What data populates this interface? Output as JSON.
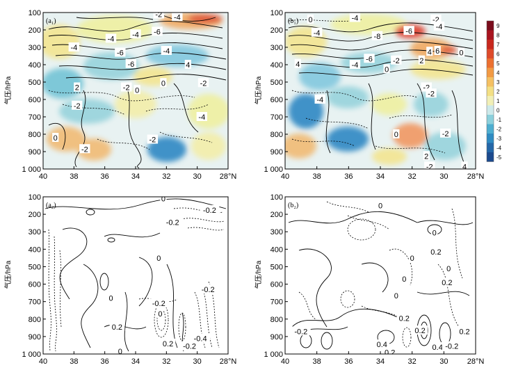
{
  "chart_data": [
    {
      "type": "heatmap",
      "panel_label": "(a₁)",
      "ylabel": "气压/hPa",
      "x_ticks": [
        "40",
        "38",
        "36",
        "34",
        "32",
        "30",
        "28°N"
      ],
      "y_ticks": [
        "100",
        "200",
        "300",
        "400",
        "500",
        "600",
        "700",
        "800",
        "900",
        "1 000"
      ],
      "xlim": [
        40,
        28
      ],
      "ylim": [
        100,
        1000
      ],
      "contour_labels": [
        {
          "text": "-2",
          "lat": 32.5,
          "p": 110
        },
        {
          "text": "-4",
          "lat": 31.3,
          "p": 125
        },
        {
          "text": "-6",
          "lat": 32.6,
          "p": 210
        },
        {
          "text": "-4",
          "lat": 35.6,
          "p": 250
        },
        {
          "text": "-4",
          "lat": 34.0,
          "p": 225
        },
        {
          "text": "-4",
          "lat": 38.0,
          "p": 300
        },
        {
          "text": "-6",
          "lat": 35.0,
          "p": 330
        },
        {
          "text": "-4",
          "lat": 32.0,
          "p": 320
        },
        {
          "text": "4",
          "lat": 30.6,
          "p": 400
        },
        {
          "text": "-6",
          "lat": 34.3,
          "p": 395
        },
        {
          "text": "2",
          "lat": 37.8,
          "p": 530
        },
        {
          "text": "-2",
          "lat": 34.6,
          "p": 530
        },
        {
          "text": "0",
          "lat": 33.9,
          "p": 545
        },
        {
          "text": "0",
          "lat": 32.2,
          "p": 505
        },
        {
          "text": "-2",
          "lat": 29.6,
          "p": 505
        },
        {
          "text": "-2",
          "lat": 37.8,
          "p": 635
        },
        {
          "text": "-4",
          "lat": 29.7,
          "p": 700
        },
        {
          "text": "0",
          "lat": 39.2,
          "p": 820
        },
        {
          "text": "-2",
          "lat": 37.3,
          "p": 885
        },
        {
          "text": "-2",
          "lat": 32.9,
          "p": 830
        }
      ]
    },
    {
      "type": "heatmap",
      "panel_label": "(b₁)",
      "ylabel": "气压/hPa",
      "x_ticks": [
        "40",
        "38",
        "36",
        "34",
        "32",
        "30",
        "28°N"
      ],
      "y_ticks": [
        "100",
        "200",
        "300",
        "400",
        "500",
        "600",
        "700",
        "800",
        "900",
        "1 000"
      ],
      "xlim": [
        40,
        28
      ],
      "ylim": [
        100,
        1000
      ],
      "colorbar": [
        "9",
        "8",
        "7",
        "6",
        "5",
        "4",
        "3",
        "2",
        "1",
        "0",
        "-1",
        "-2",
        "-3",
        "-4",
        "-5"
      ],
      "contour_labels": [
        {
          "text": "0",
          "lat": 38.4,
          "p": 140
        },
        {
          "text": "-4",
          "lat": 35.6,
          "p": 130
        },
        {
          "text": "-2",
          "lat": 30.5,
          "p": 140
        },
        {
          "text": "-4",
          "lat": 30.3,
          "p": 180
        },
        {
          "text": "-6",
          "lat": 32.2,
          "p": 205
        },
        {
          "text": "-8",
          "lat": 34.2,
          "p": 235
        },
        {
          "text": "-4",
          "lat": 38.0,
          "p": 215
        },
        {
          "text": "4",
          "lat": 39.2,
          "p": 395
        },
        {
          "text": "-6",
          "lat": 34.7,
          "p": 365
        },
        {
          "text": "-4",
          "lat": 35.6,
          "p": 400
        },
        {
          "text": "0",
          "lat": 33.6,
          "p": 425
        },
        {
          "text": "-2",
          "lat": 33.0,
          "p": 375
        },
        {
          "text": "2",
          "lat": 31.4,
          "p": 375
        },
        {
          "text": "4",
          "lat": 30.9,
          "p": 325
        },
        {
          "text": "6",
          "lat": 30.4,
          "p": 320
        },
        {
          "text": "0",
          "lat": 28.9,
          "p": 330
        },
        {
          "text": "-2",
          "lat": 31.1,
          "p": 530
        },
        {
          "text": "-4",
          "lat": 37.8,
          "p": 600
        },
        {
          "text": "-2",
          "lat": 30.8,
          "p": 565
        },
        {
          "text": "0",
          "lat": 33.0,
          "p": 800
        },
        {
          "text": "-2",
          "lat": 29.9,
          "p": 795
        },
        {
          "text": "2",
          "lat": 31.1,
          "p": 925
        },
        {
          "text": "-2",
          "lat": 30.9,
          "p": 985
        },
        {
          "text": "4",
          "lat": 28.7,
          "p": 985
        }
      ]
    },
    {
      "type": "line",
      "panel_label": "(a₂)",
      "ylabel": "气压/hPa",
      "x_ticks": [
        "40",
        "38",
        "36",
        "34",
        "32",
        "30",
        "28°N"
      ],
      "y_ticks": [
        "100",
        "200",
        "300",
        "400",
        "500",
        "600",
        "700",
        "800",
        "900",
        "1 000"
      ],
      "xlim": [
        40,
        28
      ],
      "ylim": [
        100,
        1000
      ],
      "contour_labels": [
        {
          "text": "0",
          "lat": 32.2,
          "p": 110
        },
        {
          "text": "-0.2",
          "lat": 29.2,
          "p": 175
        },
        {
          "text": "-0.2",
          "lat": 31.6,
          "p": 245
        },
        {
          "text": "0",
          "lat": 32.5,
          "p": 450
        },
        {
          "text": "-0.2",
          "lat": 29.3,
          "p": 630
        },
        {
          "text": "0",
          "lat": 35.6,
          "p": 680
        },
        {
          "text": "-0.2",
          "lat": 32.5,
          "p": 710
        },
        {
          "text": "0.2",
          "lat": 35.2,
          "p": 845
        },
        {
          "text": "0",
          "lat": 32.4,
          "p": 770
        },
        {
          "text": "-0.4",
          "lat": 29.8,
          "p": 910
        },
        {
          "text": "0.2",
          "lat": 31.9,
          "p": 940
        },
        {
          "text": "-0.2",
          "lat": 30.5,
          "p": 955
        },
        {
          "text": "0",
          "lat": 35.0,
          "p": 985
        }
      ]
    },
    {
      "type": "line",
      "panel_label": "(b₂)",
      "ylabel": "气压/hPa",
      "x_ticks": [
        "40",
        "38",
        "36",
        "34",
        "32",
        "30",
        "28°N"
      ],
      "y_ticks": [
        "100",
        "200",
        "300",
        "400",
        "500",
        "600",
        "700",
        "800",
        "900",
        "1 000"
      ],
      "xlim": [
        40,
        28
      ],
      "ylim": [
        100,
        1000
      ],
      "contour_labels": [
        {
          "text": "0",
          "lat": 34.0,
          "p": 150
        },
        {
          "text": "0",
          "lat": 30.6,
          "p": 305
        },
        {
          "text": "0",
          "lat": 32.0,
          "p": 450
        },
        {
          "text": "0.2",
          "lat": 30.5,
          "p": 415
        },
        {
          "text": "0",
          "lat": 32.5,
          "p": 570
        },
        {
          "text": "0",
          "lat": 29.7,
          "p": 510
        },
        {
          "text": "0.2",
          "lat": 29.8,
          "p": 590
        },
        {
          "text": "0",
          "lat": 33.0,
          "p": 665
        },
        {
          "text": "0.2",
          "lat": 32.5,
          "p": 795
        },
        {
          "text": "-0.2",
          "lat": 39.0,
          "p": 870
        },
        {
          "text": "0.2",
          "lat": 31.5,
          "p": 865
        },
        {
          "text": "0.2",
          "lat": 28.7,
          "p": 870
        },
        {
          "text": "0.4",
          "lat": 33.9,
          "p": 945
        },
        {
          "text": "0.2",
          "lat": 33.4,
          "p": 990
        },
        {
          "text": "0.4",
          "lat": 30.4,
          "p": 960
        },
        {
          "text": "-0.2",
          "lat": 29.5,
          "p": 955
        }
      ]
    }
  ]
}
